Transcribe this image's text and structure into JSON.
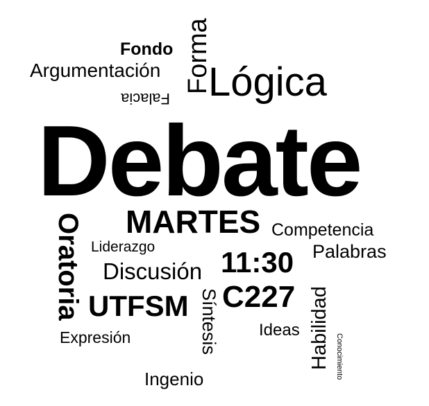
{
  "cloud": {
    "text_color": "#000000",
    "background": "#ffffff",
    "words": {
      "fondo": "Fondo",
      "argumentacion": "Argumentación",
      "falacia": "Falacia",
      "forma": "Forma",
      "logica": "Lógica",
      "debate": "Debate",
      "oratoria": "Oratoria",
      "martes": "MARTES",
      "competencia": "Competencia",
      "liderazgo": "Liderazgo",
      "palabras": "Palabras",
      "discusion": "Discusión",
      "hora": "11:30",
      "sala": "C227",
      "utfsm": "UTFSM",
      "sintesis": "Síntesis",
      "habilidad": "Habilidad",
      "ideas": "Ideas",
      "expresion": "Expresión",
      "conocimiento": "Conocimiento",
      "ingenio": "Ingenio"
    }
  }
}
